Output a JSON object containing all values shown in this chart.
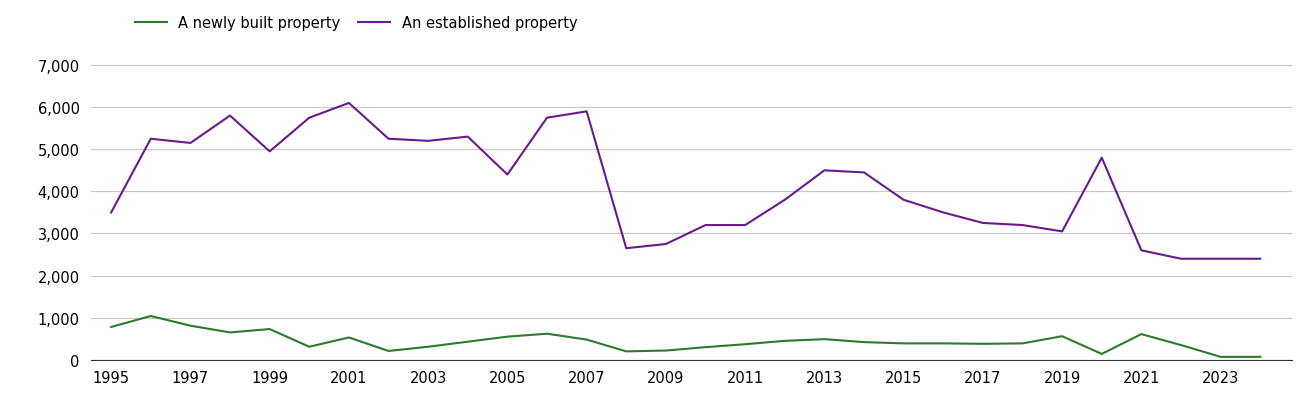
{
  "years": [
    1995,
    1996,
    1997,
    1998,
    1999,
    2000,
    2001,
    2002,
    2003,
    2004,
    2005,
    2006,
    2007,
    2008,
    2009,
    2010,
    2011,
    2012,
    2013,
    2014,
    2015,
    2016,
    2017,
    2018,
    2019,
    2020,
    2021,
    2022,
    2023,
    2024
  ],
  "newly_built": [
    780,
    1040,
    810,
    650,
    730,
    310,
    530,
    210,
    310,
    430,
    550,
    620,
    480,
    200,
    220,
    300,
    370,
    450,
    490,
    420,
    390,
    390,
    380,
    390,
    560,
    140,
    610,
    350,
    70,
    70
  ],
  "established": [
    3500,
    5250,
    5150,
    5800,
    4950,
    5750,
    6100,
    5250,
    5200,
    5300,
    4400,
    5750,
    5900,
    2650,
    2750,
    3200,
    3200,
    3800,
    4500,
    4450,
    3800,
    3500,
    3250,
    3200,
    3050,
    4800,
    2600,
    2400,
    2400,
    2400
  ],
  "newly_built_color": "#2d7a2d",
  "established_color": "#6a1a8a",
  "legend_labels": [
    "A newly built property",
    "An established property"
  ],
  "yticks": [
    0,
    1000,
    2000,
    3000,
    4000,
    5000,
    6000,
    7000
  ],
  "xtick_years": [
    1995,
    1997,
    1999,
    2001,
    2003,
    2005,
    2007,
    2009,
    2011,
    2013,
    2015,
    2017,
    2019,
    2021,
    2023
  ],
  "ylim": [
    0,
    7400
  ],
  "xlim": [
    1994.5,
    2024.8
  ],
  "line_width": 1.5,
  "bg_color": "#ffffff",
  "grid_color": "#c8c8c8",
  "tick_font_size": 10.5
}
